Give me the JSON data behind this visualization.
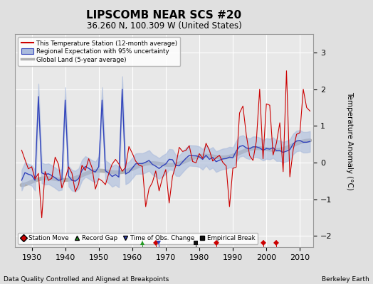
{
  "title": "LIPSCOMB NEAR SCS #20",
  "subtitle": "36.260 N, 100.309 W (United States)",
  "ylabel": "Temperature Anomaly (°C)",
  "footer_left": "Data Quality Controlled and Aligned at Breakpoints",
  "footer_right": "Berkeley Earth",
  "xlim": [
    1925,
    2014
  ],
  "ylim": [
    -2.3,
    3.5
  ],
  "yticks": [
    -2,
    -1,
    0,
    1,
    2,
    3
  ],
  "xticks": [
    1930,
    1940,
    1950,
    1960,
    1970,
    1980,
    1990,
    2000,
    2010
  ],
  "bg_color": "#e0e0e0",
  "plot_bg_color": "#e8e8e8",
  "grid_color": "#ffffff",
  "red_color": "#cc0000",
  "blue_color": "#3344bb",
  "blue_fill_color": "#aabbdd",
  "gray_color": "#b0b0b0",
  "station_move_years": [
    1967,
    1985,
    1999,
    2003
  ],
  "record_gap_years": [
    1963
  ],
  "tobs_change_years": [
    1968
  ],
  "empirical_break_years": [
    1979
  ],
  "seed": 137
}
